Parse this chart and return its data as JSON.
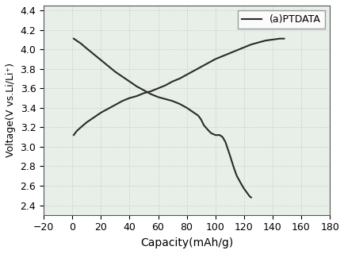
{
  "xlabel": "Capacity(mAh/g)",
  "ylabel": "Voltage(V vs.Li/Li⁺)",
  "xlim": [
    -20,
    180
  ],
  "ylim": [
    2.3,
    4.45
  ],
  "xticks": [
    -20,
    0,
    20,
    40,
    60,
    80,
    100,
    120,
    140,
    160,
    180
  ],
  "yticks": [
    2.4,
    2.6,
    2.8,
    3.0,
    3.2,
    3.4,
    3.6,
    3.8,
    4.0,
    4.2,
    4.4
  ],
  "legend_label": "(a)PTDATA",
  "line_color": "#2a2a2a",
  "grid_color": "#b8c8b8",
  "background_color": "#e8eee8",
  "discharge_x": [
    1,
    3,
    6,
    10,
    15,
    20,
    25,
    30,
    35,
    40,
    45,
    50,
    55,
    60,
    65,
    70,
    75,
    80,
    85,
    88,
    90,
    92,
    95,
    97,
    100,
    103,
    105,
    107,
    110,
    113,
    115,
    118,
    120,
    122,
    124,
    125
  ],
  "discharge_y": [
    4.11,
    4.09,
    4.06,
    4.01,
    3.95,
    3.89,
    3.83,
    3.77,
    3.72,
    3.67,
    3.62,
    3.58,
    3.54,
    3.51,
    3.49,
    3.47,
    3.44,
    3.4,
    3.35,
    3.32,
    3.28,
    3.22,
    3.17,
    3.14,
    3.12,
    3.12,
    3.1,
    3.05,
    2.92,
    2.78,
    2.7,
    2.62,
    2.57,
    2.53,
    2.49,
    2.48
  ],
  "charge_x": [
    1,
    3,
    6,
    10,
    15,
    20,
    25,
    30,
    35,
    40,
    45,
    50,
    55,
    60,
    65,
    70,
    75,
    80,
    85,
    90,
    95,
    100,
    105,
    110,
    115,
    120,
    125,
    130,
    135,
    140,
    145,
    148
  ],
  "charge_y": [
    3.12,
    3.16,
    3.2,
    3.25,
    3.3,
    3.35,
    3.39,
    3.43,
    3.47,
    3.5,
    3.52,
    3.55,
    3.57,
    3.6,
    3.63,
    3.67,
    3.7,
    3.74,
    3.78,
    3.82,
    3.86,
    3.9,
    3.93,
    3.96,
    3.99,
    4.02,
    4.05,
    4.07,
    4.09,
    4.1,
    4.11,
    4.11
  ]
}
